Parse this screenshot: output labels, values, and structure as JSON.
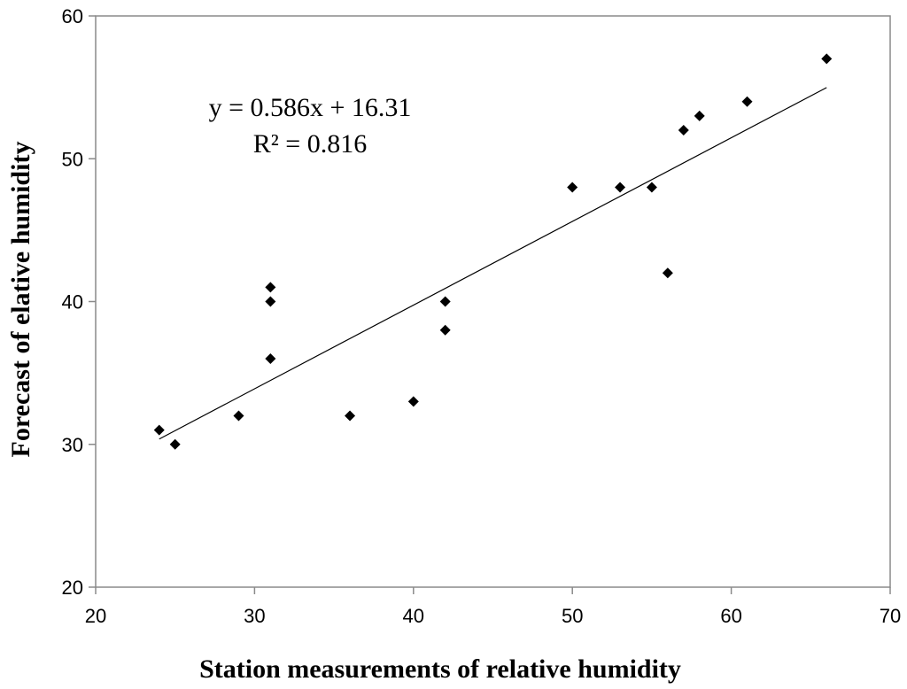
{
  "chart_data": {
    "type": "scatter",
    "xlabel": "Station measurements of relative humidity",
    "ylabel": "Forecast of elative humidity",
    "xlim": [
      20,
      70
    ],
    "ylim": [
      20,
      60
    ],
    "xticks": [
      "20",
      "30",
      "40",
      "50",
      "60",
      "70"
    ],
    "yticks": [
      "20",
      "30",
      "40",
      "50",
      "60"
    ],
    "grid": false,
    "legend": "none",
    "series": [
      {
        "marker": "diamond",
        "color": "#000000",
        "points": [
          {
            "x": 24,
            "y": 31
          },
          {
            "x": 25,
            "y": 30
          },
          {
            "x": 29,
            "y": 32
          },
          {
            "x": 31,
            "y": 41
          },
          {
            "x": 31,
            "y": 40
          },
          {
            "x": 31,
            "y": 36
          },
          {
            "x": 36,
            "y": 32
          },
          {
            "x": 40,
            "y": 33
          },
          {
            "x": 42,
            "y": 40
          },
          {
            "x": 42,
            "y": 38
          },
          {
            "x": 50,
            "y": 48
          },
          {
            "x": 53,
            "y": 48
          },
          {
            "x": 55,
            "y": 48
          },
          {
            "x": 56,
            "y": 42
          },
          {
            "x": 57,
            "y": 52
          },
          {
            "x": 58,
            "y": 53
          },
          {
            "x": 61,
            "y": 54
          },
          {
            "x": 66,
            "y": 57
          }
        ]
      }
    ],
    "trendline": {
      "type": "linear",
      "slope": 0.586,
      "intercept": 16.31,
      "x_range": [
        24,
        66
      ],
      "color": "#000000"
    },
    "annotations": [
      {
        "text": "y = 0.586x + 16.31"
      },
      {
        "text": "R² = 0.816"
      }
    ]
  }
}
